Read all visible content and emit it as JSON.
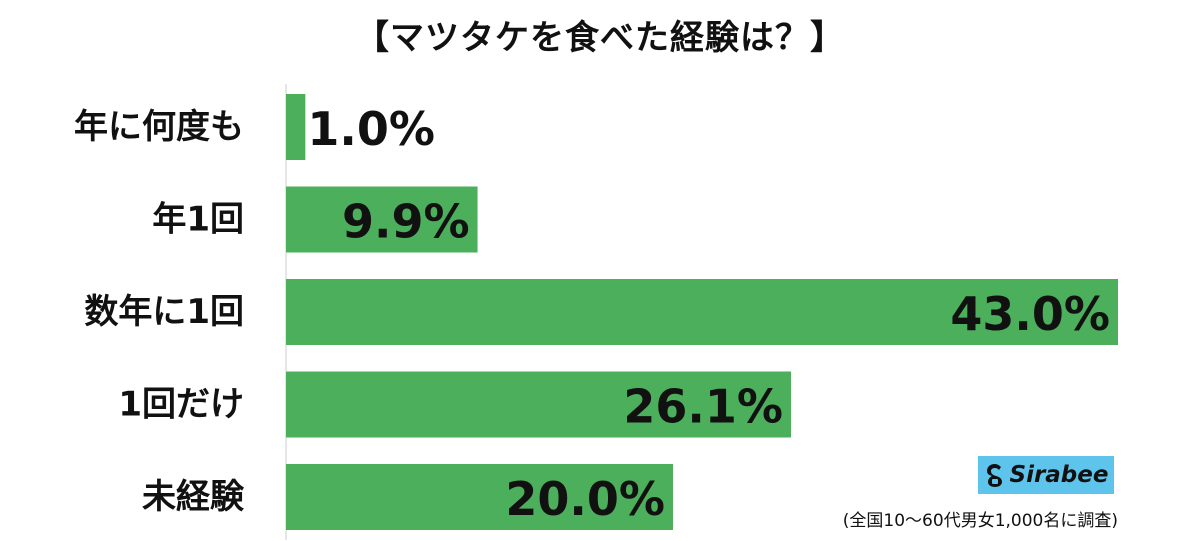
{
  "chart_data": {
    "type": "bar",
    "orientation": "horizontal",
    "title": "【マツタケを食べた経験は？】",
    "categories": [
      "年に何度も",
      "年1回",
      "数年に1回",
      "1回だけ",
      "未経験"
    ],
    "values": [
      1.0,
      9.9,
      43.0,
      26.1,
      20.0
    ],
    "value_labels": [
      "1.0%",
      "9.9%",
      "43.0%",
      "26.1%",
      "20.0%"
    ],
    "xlim": [
      0,
      43.0
    ],
    "bar_color": "#4caf5b",
    "grid": false,
    "legend": "none"
  },
  "logo": {
    "text": "Sirabee",
    "color": "#5fc4ec"
  },
  "footnote": "(全国10〜60代男女1,000名に調査)"
}
